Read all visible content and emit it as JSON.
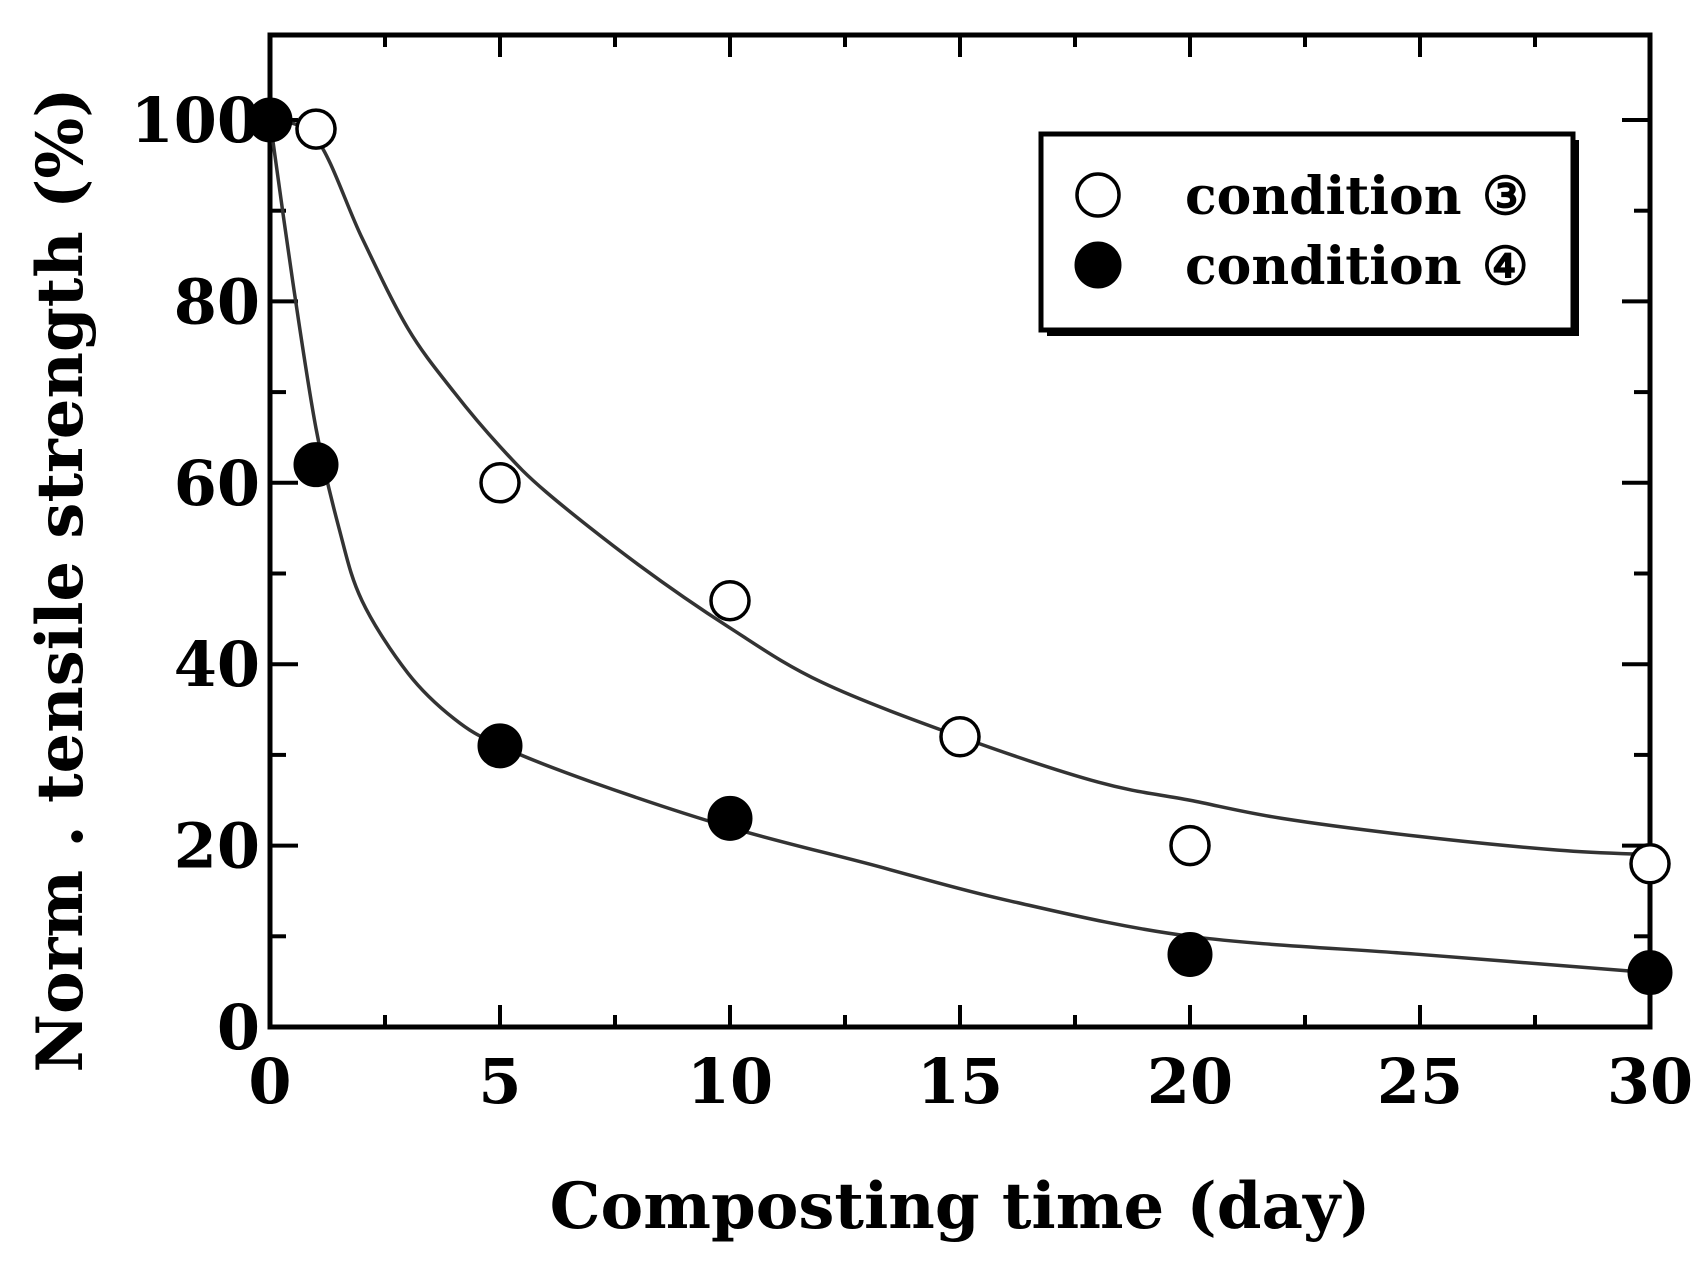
{
  "chart_data": {
    "type": "scatter",
    "title": "",
    "xlabel": "Composting time (day)",
    "ylabel": "Norm . tensile strength (%)",
    "xlim": [
      0,
      30
    ],
    "ylim": [
      0,
      110
    ],
    "x_ticks": [
      0,
      5,
      10,
      15,
      20,
      25,
      30
    ],
    "y_ticks": [
      0,
      20,
      40,
      60,
      80,
      100
    ],
    "x_tick_labels": [
      "0",
      "5",
      "10",
      "15",
      "20",
      "25",
      "30"
    ],
    "y_tick_labels": [
      "0",
      "20",
      "40",
      "60",
      "80",
      "100"
    ],
    "grid": false,
    "legend_position": "top-right",
    "series": [
      {
        "name": "condition ③",
        "label_text": "condition",
        "label_symbol": "③",
        "marker": "open-circle",
        "x": [
          1,
          5,
          10,
          15,
          20,
          30
        ],
        "y": [
          99,
          60,
          47,
          32,
          20,
          18
        ],
        "fit_curve": {
          "x": [
            0,
            1,
            2,
            3,
            4,
            5,
            6,
            8,
            10,
            12,
            15,
            18,
            20,
            22,
            25,
            28,
            30
          ],
          "y": [
            100,
            98,
            87,
            77,
            70,
            64,
            59,
            51,
            44,
            38,
            32,
            27,
            25,
            23,
            21,
            19.5,
            19
          ]
        }
      },
      {
        "name": "condition ④",
        "label_text": "condition",
        "label_symbol": "④",
        "marker": "filled-circle",
        "x": [
          0,
          1,
          5,
          10,
          20,
          30
        ],
        "y": [
          100,
          62,
          31,
          23,
          8,
          6
        ],
        "fit_curve": {
          "x": [
            0,
            0.5,
            1,
            1.5,
            2,
            3,
            4,
            5,
            7,
            10,
            13,
            16,
            20,
            25,
            30
          ],
          "y": [
            100,
            82,
            66,
            55,
            47,
            39,
            34,
            31,
            27,
            22,
            18,
            14,
            10,
            8,
            6
          ]
        }
      }
    ]
  }
}
